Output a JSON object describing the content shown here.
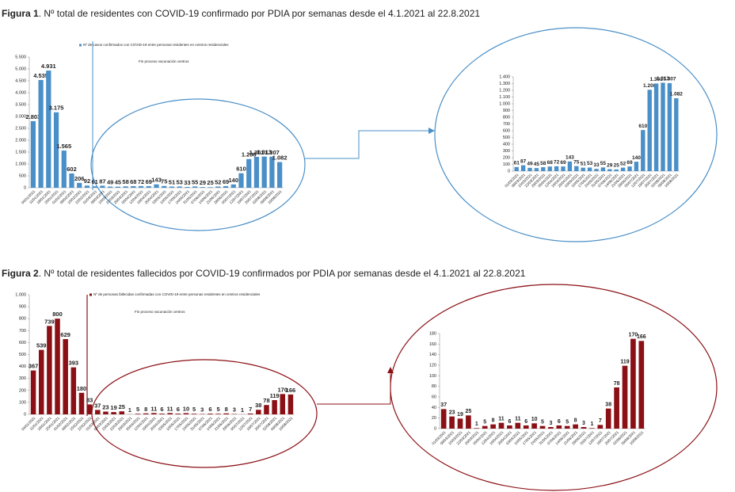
{
  "chart_data": [
    {
      "type": "bar",
      "figure_label": "Figura 1",
      "title": ". Nº total de residentes con COVID-19 confirmado por PDIA por semanas desde el 4.1.2021 al 22.8.2021",
      "annotation": "Fin proceso vacunación  centros",
      "categories": [
        "04/01/2021",
        "11/01/2021",
        "18/01/2021",
        "25/01/2021",
        "01/02/2021",
        "08/02/2021",
        "15/02/2021",
        "22/02/2021",
        "01/03/2021",
        "08/03/2021",
        "15/03/2021",
        "22/03/2021",
        "29/03/2021",
        "05/04/2021",
        "12/04/2021",
        "19/04/2021",
        "26/04/2021",
        "03/05/2021",
        "10/05/2021",
        "17/05/2021",
        "24/05/2021",
        "31/05/2021",
        "07/06/2021",
        "14/06/2021",
        "21/06/2021",
        "28/06/2021",
        "05/07/2021",
        "12/07/2021",
        "19/07/2021",
        "26/07/2021",
        "02/08/2021",
        "09/08/2021",
        "16/08/2021"
      ],
      "series": [
        {
          "name": "Nº de casos confirmados con COVID-19 entre personas residentes en centros residenciales",
          "color": "#4a8fc7",
          "values": [
            2803,
            4535,
            4931,
            3175,
            1565,
            602,
            206,
            92,
            61,
            87,
            49,
            45,
            58,
            68,
            72,
            69,
            143,
            75,
            51,
            53,
            33,
            55,
            29,
            25,
            52,
            69,
            140,
            610,
            1208,
            1301,
            1313,
            1307,
            1082
          ],
          "value_labels": [
            "2.803",
            "4.535",
            "4.931",
            "3.175",
            "1.565",
            "602",
            "206",
            "92",
            "61",
            "87",
            "49",
            "45",
            "58",
            "68",
            "72",
            "69",
            "143",
            "75",
            "51",
            "53",
            "33",
            "55",
            "29",
            "25",
            "52",
            "69",
            "140",
            "610",
            "1.208",
            "1.301",
            "1.313",
            "1.307",
            "1.082"
          ]
        }
      ],
      "ylim": [
        0,
        5500
      ],
      "yticks": [
        0,
        500,
        {
          "value": 1000,
          "label": "1.000"
        },
        {
          "value": 1500,
          "label": "1.500"
        },
        {
          "value": 2000,
          "label": "2.000"
        },
        {
          "value": 2500,
          "label": "2.500"
        },
        {
          "value": 3000,
          "label": "3.000"
        },
        {
          "value": 3500,
          "label": "3.500"
        },
        {
          "value": 4000,
          "label": "4.000"
        },
        {
          "value": 4500,
          "label": "4.500"
        },
        {
          "value": 5000,
          "label": "5.000"
        },
        {
          "value": 5500,
          "label": "5.500"
        }
      ]
    },
    {
      "type": "bar",
      "categories": [
        "01/03/2021",
        "08/03/2021",
        "15/03/2021",
        "22/03/2021",
        "29/03/2021",
        "05/04/2021",
        "12/04/2021",
        "19/04/2021",
        "26/04/2021",
        "03/05/2021",
        "10/05/2021",
        "17/05/2021",
        "24/05/2021",
        "31/05/2021",
        "07/06/2021",
        "14/06/2021",
        "21/06/2021",
        "28/06/2021",
        "05/07/2021",
        "12/07/2021",
        "19/07/2021",
        "26/07/2021",
        "02/08/2021",
        "09/08/2021",
        "16/08/2021"
      ],
      "series": [
        {
          "color": "#4a8fc7",
          "values": [
            61,
            87,
            49,
            45,
            58,
            68,
            72,
            69,
            143,
            75,
            51,
            53,
            33,
            55,
            29,
            25,
            52,
            69,
            140,
            610,
            1208,
            1301,
            1313,
            1307,
            1082
          ],
          "value_labels": [
            "61",
            "87",
            "49",
            "45",
            "58",
            "68",
            "72",
            "69",
            "143",
            "75",
            "51",
            "53",
            "33",
            "55",
            "29",
            "25",
            "52",
            "69",
            "140",
            "610",
            "1.208",
            "1.301",
            "1.313",
            "1.307",
            "1.082"
          ]
        }
      ],
      "ylim": [
        0,
        1400
      ],
      "yticks": [
        0,
        100,
        200,
        300,
        400,
        500,
        600,
        700,
        800,
        900,
        {
          "value": 1000,
          "label": "1.000"
        },
        {
          "value": 1100,
          "label": "1.100"
        },
        {
          "value": 1200,
          "label": "1.200"
        },
        {
          "value": 1300,
          "label": "1.300"
        },
        {
          "value": 1400,
          "label": "1.400"
        }
      ]
    },
    {
      "type": "bar",
      "figure_label": "Figura 2",
      "title": ". Nº total de residentes fallecidos por COVID-19 confirmados por PDIA por semanas desde el 4.1.2021 al 22.8.2021",
      "annotation": "Fin proceso vacunación  centros",
      "categories": [
        "04/01/2021",
        "11/01/2021",
        "18/01/2021",
        "25/01/2021",
        "01/02/2021",
        "08/02/2021",
        "15/02/2021",
        "22/02/2021",
        "01/03/2021",
        "08/03/2021",
        "15/03/2021",
        "22/03/2021",
        "29/03/2021",
        "05/04/2021",
        "12/04/2021",
        "19/04/2021",
        "26/04/2021",
        "03/05/2021",
        "10/05/2021",
        "17/05/2021",
        "24/05/2021",
        "31/05/2021",
        "07/06/2021",
        "14/06/2021",
        "21/06/2021",
        "28/06/2021",
        "05/07/2021",
        "12/07/2021",
        "19/07/2021",
        "26/07/2021",
        "02/08/2021",
        "09/08/2021",
        "16/08/2021"
      ],
      "series": [
        {
          "name": "Nº de personas fallecidas confirmadas con COVID-19 entre personas residentes en centros residenciales",
          "color": "#8b1015",
          "values": [
            367,
            539,
            739,
            800,
            629,
            393,
            180,
            83,
            37,
            23,
            19,
            25,
            1,
            5,
            8,
            11,
            6,
            11,
            6,
            10,
            5,
            3,
            6,
            5,
            8,
            3,
            1,
            7,
            38,
            78,
            119,
            170,
            166
          ]
        }
      ],
      "ylim": [
        0,
        1000
      ],
      "yticks": [
        0,
        100,
        200,
        300,
        400,
        500,
        600,
        700,
        800,
        900,
        {
          "value": 1000,
          "label": "1.000"
        }
      ]
    },
    {
      "type": "bar",
      "categories": [
        "01/03/2021",
        "08/03/2021",
        "15/03/2021",
        "22/03/2021",
        "29/03/2021",
        "05/04/2021",
        "12/04/2021",
        "19/04/2021",
        "26/04/2021",
        "03/05/2021",
        "10/05/2021",
        "17/05/2021",
        "24/05/2021",
        "31/05/2021",
        "07/06/2021",
        "14/06/2021",
        "21/06/2021",
        "28/06/2021",
        "05/07/2021",
        "12/07/2021",
        "19/07/2021",
        "26/07/2021",
        "02/08/2021",
        "09/08/2021",
        "16/08/2021"
      ],
      "series": [
        {
          "color": "#8b1015",
          "values": [
            37,
            23,
            19,
            25,
            1,
            5,
            8,
            11,
            6,
            11,
            6,
            10,
            5,
            3,
            6,
            5,
            8,
            3,
            1,
            7,
            38,
            78,
            119,
            170,
            166
          ]
        }
      ],
      "ylim": [
        0,
        180
      ],
      "yticks": [
        0,
        20,
        40,
        60,
        80,
        100,
        120,
        140,
        160,
        180
      ]
    }
  ]
}
